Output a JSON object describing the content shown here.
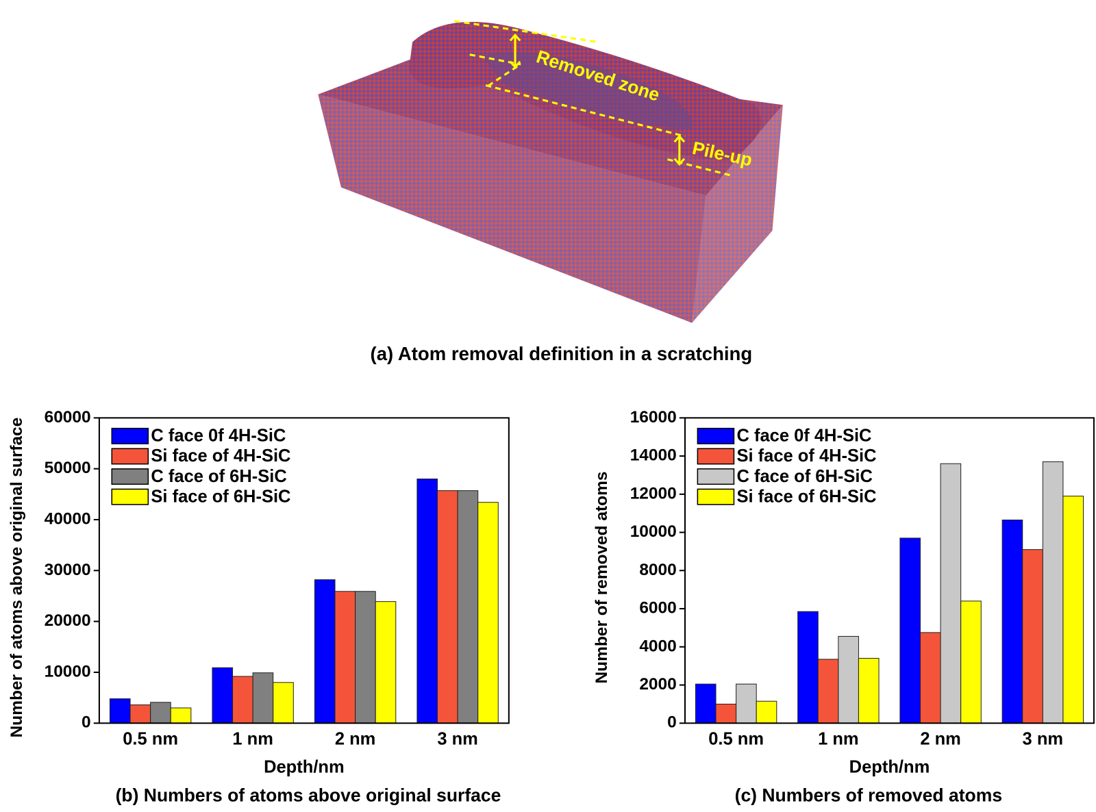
{
  "figure_a": {
    "caption": "(a) Atom removal definition in a scratching",
    "annotations": [
      "Removed zone",
      "Pile-up"
    ]
  },
  "chart_data": [
    {
      "type": "bar",
      "caption": "(b) Numbers of atoms above original surface",
      "x_label": "Depth/nm",
      "y_label": "Number of atoms above original surface",
      "categories": [
        "0.5 nm",
        "1 nm",
        "2 nm",
        "3 nm"
      ],
      "series": [
        {
          "name": "C face 0f 4H-SiC",
          "color": "#0000ff",
          "values": [
            4800,
            10900,
            28200,
            48000
          ]
        },
        {
          "name": "Si face of 4H-SiC",
          "color": "#f4553a",
          "values": [
            3600,
            9200,
            25900,
            45700
          ]
        },
        {
          "name": "C face of 6H-SiC",
          "color": "#808080",
          "values": [
            4100,
            9900,
            25900,
            45700
          ]
        },
        {
          "name": "Si face of 6H-SiC",
          "color": "#ffff00",
          "values": [
            3000,
            8000,
            23900,
            43400
          ]
        }
      ],
      "ylim": [
        0,
        60000
      ],
      "yticks": [
        0,
        10000,
        20000,
        30000,
        40000,
        50000,
        60000
      ],
      "legend": "upper-left"
    },
    {
      "type": "bar",
      "caption": "(c) Numbers of removed atoms",
      "x_label": "Depth/nm",
      "y_label": "Number of removed atoms",
      "categories": [
        "0.5 nm",
        "1 nm",
        "2 nm",
        "3 nm"
      ],
      "series": [
        {
          "name": "C face 0f 4H-SiC",
          "color": "#0000ff",
          "values": [
            2050,
            5850,
            9700,
            10650
          ]
        },
        {
          "name": "Si face of 4H-SiC",
          "color": "#f4553a",
          "values": [
            1000,
            3350,
            4750,
            9100
          ]
        },
        {
          "name": "C face of 6H-SiC",
          "color": "#c8c8c8",
          "values": [
            2050,
            4550,
            13600,
            13700
          ]
        },
        {
          "name": "Si face of 6H-SiC",
          "color": "#ffff00",
          "values": [
            1150,
            3400,
            6400,
            11900
          ]
        }
      ],
      "ylim": [
        0,
        16000
      ],
      "yticks": [
        0,
        2000,
        4000,
        6000,
        8000,
        10000,
        12000,
        14000,
        16000
      ],
      "legend": "upper-left"
    }
  ]
}
